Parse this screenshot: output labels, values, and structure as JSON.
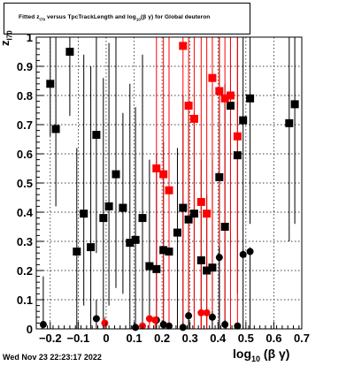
{
  "title_parts": {
    "prefix": "Fitted  z",
    "sub1": "I70",
    "middle": "  versus TpcTrackLength and log",
    "sub2": "10",
    "suffix": "(β γ) for Global deuteron"
  },
  "footer": "Wed Nov 23 22:23:17 2022",
  "xlabel_parts": {
    "prefix": "log",
    "sub": "10",
    "suffix": "(β γ)"
  },
  "ylabel_parts": {
    "prefix": "z",
    "sub": "I70"
  },
  "colors": {
    "black": "#000000",
    "red": "#ff0000",
    "grid": "#000000"
  },
  "chart_data": {
    "type": "scatter",
    "xlim": [
      -0.25,
      0.7
    ],
    "ylim": [
      0,
      1
    ],
    "xticks": [
      -0.2,
      -0.1,
      0,
      0.1,
      0.2,
      0.3,
      0.4,
      0.5,
      0.6,
      0.7
    ],
    "xtick_labels": [
      "−0.2",
      "−0.1",
      "0",
      "0.1",
      "0.2",
      "0.3",
      "0.4",
      "0.5",
      "0.6",
      "0.7"
    ],
    "yticks": [
      0,
      0.1,
      0.2,
      0.3,
      0.4,
      0.5,
      0.6,
      0.7,
      0.8,
      0.9,
      1
    ],
    "ytick_labels": [
      "0",
      "0.1",
      "0.2",
      "0.3",
      "0.4",
      "0.5",
      "0.6",
      "0.7",
      "0.8",
      "0.9",
      "1"
    ],
    "grid": true,
    "series": [
      {
        "marker": "square",
        "color": "black",
        "points": [
          {
            "x": -0.2,
            "y": 0.84,
            "lo": 0.66,
            "hi": 1.0
          },
          {
            "x": -0.18,
            "y": 0.685,
            "lo": 0.42,
            "hi": 1.0
          },
          {
            "x": -0.13,
            "y": 0.95,
            "lo": 0.73,
            "hi": 1.0
          },
          {
            "x": -0.105,
            "y": 0.265,
            "lo": 0.0,
            "hi": 0.62
          },
          {
            "x": -0.08,
            "y": 0.395,
            "lo": 0.08,
            "hi": 0.94
          },
          {
            "x": -0.055,
            "y": 0.28,
            "lo": 0.0,
            "hi": 0.9
          },
          {
            "x": -0.035,
            "y": 0.665,
            "lo": 0.26,
            "hi": 1.0
          },
          {
            "x": -0.01,
            "y": 0.38,
            "lo": 0.0,
            "hi": 0.86
          },
          {
            "x": 0.01,
            "y": 0.42,
            "lo": 0.08,
            "hi": 0.98
          },
          {
            "x": 0.035,
            "y": 0.53,
            "lo": 0.14,
            "hi": 1.0
          },
          {
            "x": 0.06,
            "y": 0.415,
            "lo": 0.12,
            "hi": 0.74
          },
          {
            "x": 0.085,
            "y": 0.295,
            "lo": 0.0,
            "hi": 0.84
          },
          {
            "x": 0.105,
            "y": 0.305,
            "lo": 0.0,
            "hi": 0.76
          },
          {
            "x": 0.13,
            "y": 0.38,
            "lo": 0.0,
            "hi": 0.94
          },
          {
            "x": 0.155,
            "y": 0.215,
            "lo": 0.02,
            "hi": 0.58
          },
          {
            "x": 0.18,
            "y": 0.205,
            "lo": 0.0,
            "hi": 0.6
          },
          {
            "x": 0.205,
            "y": 0.27,
            "lo": 0.0,
            "hi": 0.64
          },
          {
            "x": 0.225,
            "y": 0.265,
            "lo": 0.0,
            "hi": 0.54
          },
          {
            "x": 0.255,
            "y": 0.33,
            "lo": 0.0,
            "hi": 0.62
          },
          {
            "x": 0.275,
            "y": 0.415,
            "lo": 0.0,
            "hi": 0.8
          },
          {
            "x": 0.295,
            "y": 0.375,
            "lo": 0.0,
            "hi": 0.78
          },
          {
            "x": 0.315,
            "y": 0.395,
            "lo": 0.06,
            "hi": 0.74
          },
          {
            "x": 0.34,
            "y": 0.235,
            "lo": 0.0,
            "hi": 0.58
          },
          {
            "x": 0.36,
            "y": 0.2,
            "lo": 0.0,
            "hi": 0.46
          },
          {
            "x": 0.38,
            "y": 0.21,
            "lo": 0.0,
            "hi": 0.58
          },
          {
            "x": 0.405,
            "y": 0.52,
            "lo": 0.04,
            "hi": 1.0
          },
          {
            "x": 0.425,
            "y": 0.35,
            "lo": 0.0,
            "hi": 0.84
          },
          {
            "x": 0.445,
            "y": 0.765,
            "lo": 0.28,
            "hi": 1.0
          },
          {
            "x": 0.47,
            "y": 0.595,
            "lo": 0.12,
            "hi": 1.0
          },
          {
            "x": 0.49,
            "y": 0.715,
            "lo": 0.26,
            "hi": 1.0
          },
          {
            "x": 0.515,
            "y": 0.79,
            "lo": 0.36,
            "hi": 1.0
          },
          {
            "x": 0.655,
            "y": 0.705,
            "lo": 0.3,
            "hi": 1.0
          },
          {
            "x": 0.675,
            "y": 0.77,
            "lo": 0.36,
            "hi": 1.0
          }
        ]
      },
      {
        "marker": "square",
        "color": "red",
        "points": [
          {
            "x": 0.18,
            "y": 0.55,
            "lo": 0.0,
            "hi": 1.0
          },
          {
            "x": 0.205,
            "y": 0.53,
            "lo": 0.0,
            "hi": 1.0
          },
          {
            "x": 0.225,
            "y": 0.475,
            "lo": 0.0,
            "hi": 1.0
          },
          {
            "x": 0.275,
            "y": 0.97,
            "lo": 0.0,
            "hi": 1.0
          },
          {
            "x": 0.295,
            "y": 0.765,
            "lo": 0.0,
            "hi": 1.0
          },
          {
            "x": 0.315,
            "y": 0.72,
            "lo": 0.0,
            "hi": 1.0
          },
          {
            "x": 0.34,
            "y": 0.435,
            "lo": 0.0,
            "hi": 1.0
          },
          {
            "x": 0.36,
            "y": 0.395,
            "lo": 0.0,
            "hi": 1.0
          },
          {
            "x": 0.38,
            "y": 0.86,
            "lo": 0.0,
            "hi": 1.0
          },
          {
            "x": 0.405,
            "y": 0.815,
            "lo": 0.0,
            "hi": 1.0
          },
          {
            "x": 0.425,
            "y": 0.79,
            "lo": 0.0,
            "hi": 1.0
          },
          {
            "x": 0.445,
            "y": 0.8,
            "lo": 0.0,
            "hi": 1.0
          },
          {
            "x": 0.47,
            "y": 0.66,
            "lo": 0.0,
            "hi": 1.0
          }
        ]
      },
      {
        "marker": "circle",
        "color": "black",
        "points": [
          {
            "x": -0.225,
            "y": 0.015,
            "lo": 0.0,
            "hi": 0.18
          },
          {
            "x": -0.035,
            "y": 0.035,
            "lo": 0.0,
            "hi": 0.1
          },
          {
            "x": 0.105,
            "y": 0.005,
            "lo": 0.0,
            "hi": 0.02
          },
          {
            "x": 0.18,
            "y": 0.03,
            "lo": 0.0,
            "hi": 0.04
          },
          {
            "x": 0.205,
            "y": 0.015,
            "lo": 0.0,
            "hi": 0.03
          },
          {
            "x": 0.225,
            "y": 0.01,
            "lo": 0.0,
            "hi": 0.02
          },
          {
            "x": 0.275,
            "y": 0.005,
            "lo": 0.0,
            "hi": 0.02
          },
          {
            "x": 0.295,
            "y": 0.045,
            "lo": 0.0,
            "hi": 0.06
          },
          {
            "x": 0.38,
            "y": 0.04,
            "lo": 0.0,
            "hi": 0.06
          },
          {
            "x": 0.405,
            "y": 0.245,
            "lo": 0.0,
            "hi": 0.28
          },
          {
            "x": 0.425,
            "y": 0.015,
            "lo": 0.0,
            "hi": 0.03
          },
          {
            "x": 0.47,
            "y": 0.01,
            "lo": 0.0,
            "hi": 0.02
          },
          {
            "x": 0.49,
            "y": 0.255,
            "lo": 0.0,
            "hi": 0.27
          },
          {
            "x": 0.515,
            "y": 0.265,
            "lo": 0.0,
            "hi": 0.28
          }
        ]
      },
      {
        "marker": "circle",
        "color": "red",
        "points": [
          {
            "x": -0.005,
            "y": 0.02,
            "lo": 0.0,
            "hi": 0.04
          },
          {
            "x": 0.13,
            "y": 0.01,
            "lo": 0.0,
            "hi": 0.02
          },
          {
            "x": 0.155,
            "y": 0.035,
            "lo": 0.0,
            "hi": 0.05
          },
          {
            "x": 0.175,
            "y": 0.03,
            "lo": 0.0,
            "hi": 0.04
          },
          {
            "x": 0.34,
            "y": 0.055,
            "lo": 0.0,
            "hi": 0.07
          },
          {
            "x": 0.36,
            "y": 0.055,
            "lo": 0.0,
            "hi": 0.07
          }
        ]
      }
    ]
  }
}
